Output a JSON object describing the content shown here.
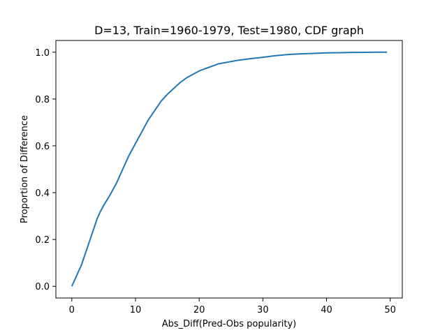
{
  "chart_data": {
    "type": "line",
    "title": "D=13, Train=1960-1979, Test=1980, CDF graph",
    "xlabel": "Abs_Diff(Pred-Obs popularity)",
    "ylabel": "Proportion of Difference",
    "xlim": [
      -2.5,
      51.9
    ],
    "ylim": [
      -0.05,
      1.05
    ],
    "xticks": [
      0,
      10,
      20,
      30,
      40,
      50
    ],
    "yticks": [
      0.0,
      0.2,
      0.4,
      0.6,
      0.8,
      1.0
    ],
    "xtick_labels": [
      "0",
      "10",
      "20",
      "30",
      "40",
      "50"
    ],
    "ytick_labels": [
      "0.0",
      "0.2",
      "0.4",
      "0.6",
      "0.8",
      "1.0"
    ],
    "grid": false,
    "series": [
      {
        "color": "#1f77b4",
        "x": [
          0,
          0.5,
          1,
          1.5,
          2,
          2.5,
          3,
          3.5,
          4,
          4.5,
          5,
          6,
          7,
          8,
          9,
          10,
          11,
          12,
          13,
          14,
          15,
          16,
          17,
          18,
          19,
          20,
          21,
          22,
          23,
          24,
          25,
          26,
          28,
          30,
          32,
          34,
          36,
          38,
          40,
          42,
          44,
          46,
          48,
          49.5
        ],
        "y": [
          0.0,
          0.03,
          0.06,
          0.09,
          0.13,
          0.17,
          0.21,
          0.25,
          0.29,
          0.32,
          0.345,
          0.39,
          0.44,
          0.5,
          0.56,
          0.61,
          0.66,
          0.71,
          0.75,
          0.79,
          0.82,
          0.845,
          0.87,
          0.89,
          0.905,
          0.92,
          0.93,
          0.94,
          0.95,
          0.955,
          0.96,
          0.965,
          0.972,
          0.978,
          0.985,
          0.99,
          0.993,
          0.995,
          0.997,
          0.998,
          0.999,
          0.9995,
          1.0,
          1.0
        ]
      }
    ]
  }
}
